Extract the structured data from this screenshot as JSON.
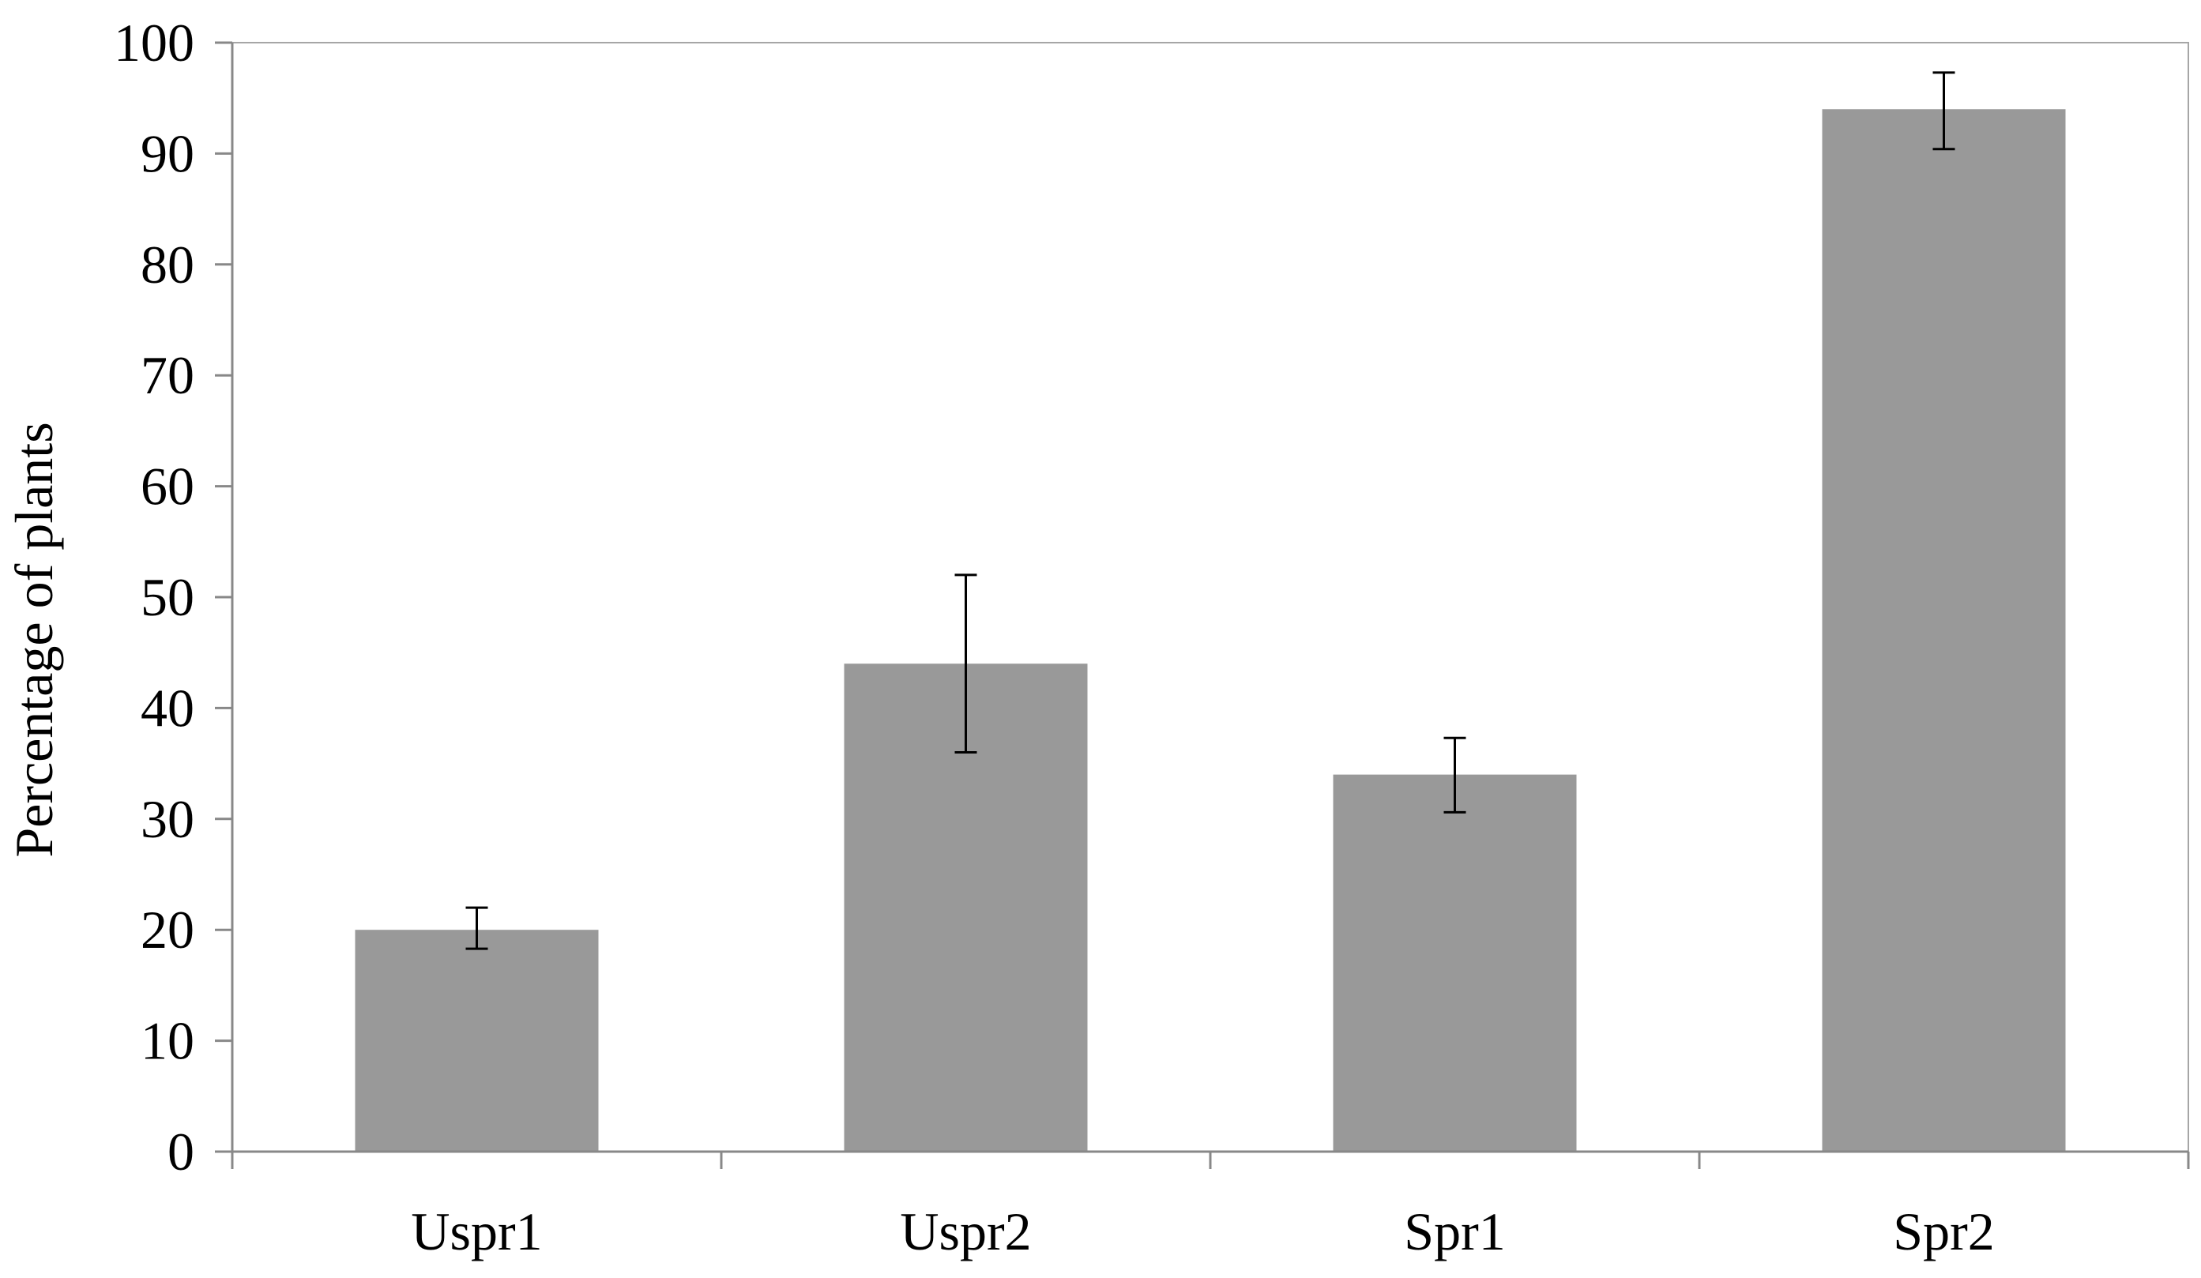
{
  "chart_data": {
    "type": "bar",
    "title": "",
    "xlabel": "",
    "ylabel": "Percentage of plants",
    "categories": [
      "Uspr1",
      "Uspr2",
      "Spr1",
      "Spr2"
    ],
    "values": [
      20,
      44,
      34,
      94
    ],
    "error_bars": [
      {
        "low": 18.3,
        "high": 22.0
      },
      {
        "low": 36.0,
        "high": 52.0
      },
      {
        "low": 30.6,
        "high": 37.3
      },
      {
        "low": 90.4,
        "high": 97.3
      }
    ],
    "ylim": [
      0,
      100
    ],
    "yticks": [
      "0",
      "10",
      "20",
      "30",
      "40",
      "50",
      "60",
      "70",
      "80",
      "90",
      "100"
    ],
    "grid": false,
    "legend": "none",
    "colors": {
      "bar": "#999999",
      "axis": "#888888",
      "plot_border": "#a6a6a6",
      "error_bar": "#000000",
      "text": "#000000"
    }
  }
}
